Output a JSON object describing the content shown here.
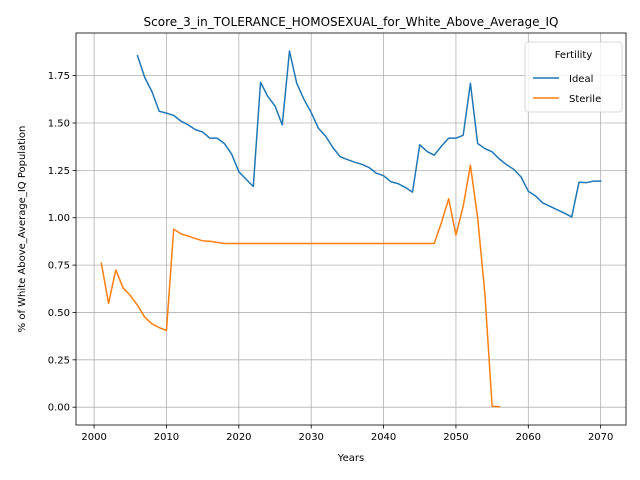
{
  "chart_data": {
    "type": "line",
    "title": "Score_3_in_TOLERANCE_HOMOSEXUAL_for_White_Above_Average_IQ",
    "xlabel": "Years",
    "ylabel": "% of White Above_Average_IQ Population",
    "xlim": [
      1997.5,
      2073.5
    ],
    "ylim": [
      -0.094,
      1.975
    ],
    "x_ticks": [
      2000,
      2010,
      2020,
      2030,
      2040,
      2050,
      2060,
      2070
    ],
    "y_ticks": [
      0.0,
      0.25,
      0.5,
      0.75,
      1.0,
      1.25,
      1.5,
      1.75
    ],
    "x_tick_labels": [
      "2000",
      "2010",
      "2020",
      "2030",
      "2040",
      "2050",
      "2060",
      "2070"
    ],
    "y_tick_labels": [
      "0.00",
      "0.25",
      "0.50",
      "0.75",
      "1.00",
      "1.25",
      "1.50",
      "1.75"
    ],
    "grid": true,
    "legend": {
      "title": "Fertility",
      "position": "top-right"
    },
    "series": [
      {
        "name": "Ideal",
        "color": "#1f77b4",
        "points": [
          [
            2006,
            1.855
          ],
          [
            2007,
            1.74
          ],
          [
            2008,
            1.665
          ],
          [
            2009,
            1.562
          ],
          [
            2010,
            1.552
          ],
          [
            2011,
            1.54
          ],
          [
            2012,
            1.51
          ],
          [
            2013,
            1.49
          ],
          [
            2014,
            1.465
          ],
          [
            2015,
            1.452
          ],
          [
            2016,
            1.42
          ],
          [
            2017,
            1.42
          ],
          [
            2018,
            1.392
          ],
          [
            2019,
            1.336
          ],
          [
            2020,
            1.243
          ],
          [
            2021,
            1.203
          ],
          [
            2022,
            1.165
          ],
          [
            2023,
            1.715
          ],
          [
            2024,
            1.64
          ],
          [
            2025,
            1.59
          ],
          [
            2026,
            1.49
          ],
          [
            2027,
            1.88
          ],
          [
            2028,
            1.71
          ],
          [
            2029,
            1.625
          ],
          [
            2030,
            1.555
          ],
          [
            2031,
            1.472
          ],
          [
            2032,
            1.43
          ],
          [
            2033,
            1.37
          ],
          [
            2034,
            1.322
          ],
          [
            2035,
            1.307
          ],
          [
            2036,
            1.293
          ],
          [
            2037,
            1.282
          ],
          [
            2038,
            1.265
          ],
          [
            2039,
            1.235
          ],
          [
            2040,
            1.222
          ],
          [
            2041,
            1.19
          ],
          [
            2042,
            1.18
          ],
          [
            2043,
            1.16
          ],
          [
            2044,
            1.135
          ],
          [
            2045,
            1.385
          ],
          [
            2046,
            1.35
          ],
          [
            2047,
            1.33
          ],
          [
            2048,
            1.378
          ],
          [
            2049,
            1.42
          ],
          [
            2050,
            1.42
          ],
          [
            2051,
            1.435
          ],
          [
            2052,
            1.71
          ],
          [
            2053,
            1.392
          ],
          [
            2054,
            1.365
          ],
          [
            2055,
            1.348
          ],
          [
            2056,
            1.31
          ],
          [
            2057,
            1.28
          ],
          [
            2058,
            1.255
          ],
          [
            2059,
            1.215
          ],
          [
            2060,
            1.14
          ],
          [
            2061,
            1.115
          ],
          [
            2062,
            1.078
          ],
          [
            2063,
            1.06
          ],
          [
            2064,
            1.042
          ],
          [
            2065,
            1.024
          ],
          [
            2066,
            1.004
          ],
          [
            2067,
            1.187
          ],
          [
            2068,
            1.185
          ],
          [
            2069,
            1.193
          ],
          [
            2070,
            1.193
          ]
        ]
      },
      {
        "name": "Sterile",
        "color": "#ff7f0e",
        "points": [
          [
            2001,
            0.76
          ],
          [
            2002,
            0.548
          ],
          [
            2003,
            0.725
          ],
          [
            2004,
            0.63
          ],
          [
            2005,
            0.59
          ],
          [
            2006,
            0.538
          ],
          [
            2007,
            0.475
          ],
          [
            2008,
            0.44
          ],
          [
            2009,
            0.42
          ],
          [
            2010,
            0.405
          ],
          [
            2011,
            0.94
          ],
          [
            2012,
            0.915
          ],
          [
            2013,
            0.903
          ],
          [
            2014,
            0.89
          ],
          [
            2015,
            0.878
          ],
          [
            2016,
            0.876
          ],
          [
            2017,
            0.87
          ],
          [
            2018,
            0.864
          ],
          [
            2019,
            0.864
          ],
          [
            2020,
            0.864
          ],
          [
            2021,
            0.864
          ],
          [
            2022,
            0.864
          ],
          [
            2023,
            0.864
          ],
          [
            2024,
            0.864
          ],
          [
            2025,
            0.864
          ],
          [
            2026,
            0.864
          ],
          [
            2027,
            0.864
          ],
          [
            2028,
            0.864
          ],
          [
            2029,
            0.864
          ],
          [
            2030,
            0.864
          ],
          [
            2031,
            0.864
          ],
          [
            2032,
            0.864
          ],
          [
            2033,
            0.864
          ],
          [
            2034,
            0.864
          ],
          [
            2035,
            0.864
          ],
          [
            2036,
            0.864
          ],
          [
            2037,
            0.864
          ],
          [
            2038,
            0.864
          ],
          [
            2039,
            0.864
          ],
          [
            2040,
            0.864
          ],
          [
            2041,
            0.864
          ],
          [
            2042,
            0.864
          ],
          [
            2043,
            0.864
          ],
          [
            2044,
            0.864
          ],
          [
            2045,
            0.864
          ],
          [
            2046,
            0.864
          ],
          [
            2047,
            0.864
          ],
          [
            2048,
            0.975
          ],
          [
            2049,
            1.1
          ],
          [
            2050,
            0.908
          ],
          [
            2051,
            1.06
          ],
          [
            2052,
            1.277
          ],
          [
            2053,
            1.0
          ],
          [
            2054,
            0.6
          ],
          [
            2055,
            0.005
          ],
          [
            2056,
            0.002
          ]
        ]
      }
    ]
  }
}
